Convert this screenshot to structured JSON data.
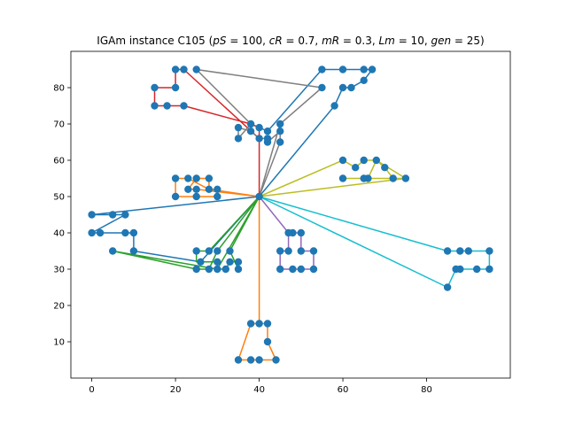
{
  "chart_data": {
    "type": "scatter",
    "title": "IGAm instance C105 (pS = 100, cR = 0.7, mR = 0.3, Lm = 10, gen = 25)",
    "title_parts": [
      {
        "text": "IGAm instance C105 (",
        "italic": false
      },
      {
        "text": "pS",
        "italic": true
      },
      {
        "text": " = 100, ",
        "italic": false
      },
      {
        "text": "cR",
        "italic": true
      },
      {
        "text": " = 0.7, ",
        "italic": false
      },
      {
        "text": "mR",
        "italic": true
      },
      {
        "text": " = 0.3, ",
        "italic": false
      },
      {
        "text": "Lm",
        "italic": true
      },
      {
        "text": " = 10, ",
        "italic": false
      },
      {
        "text": "gen",
        "italic": true
      },
      {
        "text": " = 25)",
        "italic": false
      }
    ],
    "xlabel": "",
    "ylabel": "",
    "xlim": [
      -5,
      100
    ],
    "ylim": [
      0,
      90
    ],
    "xticks": [
      0,
      20,
      40,
      60,
      80
    ],
    "yticks": [
      10,
      20,
      30,
      40,
      50,
      60,
      70,
      80
    ],
    "grid": false,
    "depot": [
      40,
      50
    ],
    "marker_color": "#1f77b4",
    "customers": [
      [
        45,
        68
      ],
      [
        45,
        70
      ],
      [
        42,
        66
      ],
      [
        42,
        68
      ],
      [
        42,
        65
      ],
      [
        40,
        69
      ],
      [
        40,
        66
      ],
      [
        38,
        68
      ],
      [
        38,
        70
      ],
      [
        35,
        66
      ],
      [
        35,
        69
      ],
      [
        25,
        85
      ],
      [
        22,
        75
      ],
      [
        22,
        85
      ],
      [
        20,
        80
      ],
      [
        20,
        85
      ],
      [
        18,
        75
      ],
      [
        15,
        75
      ],
      [
        15,
        80
      ],
      [
        30,
        50
      ],
      [
        30,
        52
      ],
      [
        28,
        52
      ],
      [
        28,
        55
      ],
      [
        25,
        50
      ],
      [
        25,
        52
      ],
      [
        25,
        55
      ],
      [
        23,
        52
      ],
      [
        23,
        55
      ],
      [
        20,
        50
      ],
      [
        20,
        55
      ],
      [
        10,
        35
      ],
      [
        10,
        40
      ],
      [
        8,
        40
      ],
      [
        8,
        45
      ],
      [
        5,
        35
      ],
      [
        5,
        45
      ],
      [
        2,
        40
      ],
      [
        0,
        40
      ],
      [
        0,
        45
      ],
      [
        35,
        30
      ],
      [
        35,
        32
      ],
      [
        33,
        32
      ],
      [
        33,
        35
      ],
      [
        32,
        30
      ],
      [
        30,
        30
      ],
      [
        30,
        32
      ],
      [
        30,
        35
      ],
      [
        28,
        30
      ],
      [
        28,
        35
      ],
      [
        26,
        32
      ],
      [
        25,
        30
      ],
      [
        25,
        35
      ],
      [
        44,
        5
      ],
      [
        42,
        10
      ],
      [
        42,
        15
      ],
      [
        40,
        5
      ],
      [
        40,
        15
      ],
      [
        38,
        5
      ],
      [
        38,
        15
      ],
      [
        35,
        5
      ],
      [
        95,
        30
      ],
      [
        95,
        35
      ],
      [
        53,
        30
      ],
      [
        92,
        30
      ],
      [
        53,
        35
      ],
      [
        45,
        65
      ],
      [
        90,
        35
      ],
      [
        88,
        30
      ],
      [
        88,
        35
      ],
      [
        87,
        30
      ],
      [
        85,
        25
      ],
      [
        85,
        35
      ],
      [
        75,
        55
      ],
      [
        72,
        55
      ],
      [
        70,
        58
      ],
      [
        68,
        60
      ],
      [
        66,
        55
      ],
      [
        65,
        55
      ],
      [
        65,
        60
      ],
      [
        63,
        58
      ],
      [
        60,
        55
      ],
      [
        60,
        60
      ],
      [
        67,
        85
      ],
      [
        65,
        85
      ],
      [
        65,
        82
      ],
      [
        62,
        80
      ],
      [
        60,
        80
      ],
      [
        60,
        85
      ],
      [
        58,
        75
      ],
      [
        55,
        80
      ],
      [
        55,
        85
      ],
      [
        50,
        30
      ],
      [
        50,
        35
      ],
      [
        50,
        40
      ],
      [
        48,
        30
      ],
      [
        48,
        40
      ],
      [
        47,
        35
      ],
      [
        47,
        40
      ],
      [
        45,
        30
      ],
      [
        45,
        35
      ]
    ],
    "series": [
      {
        "color": "#1f77b4",
        "points": [
          [
            40,
            50
          ],
          [
            58,
            75
          ],
          [
            60,
            80
          ],
          [
            62,
            80
          ],
          [
            65,
            82
          ],
          [
            67,
            85
          ],
          [
            65,
            85
          ],
          [
            60,
            85
          ],
          [
            55,
            85
          ],
          [
            42,
            68
          ],
          [
            40,
            69
          ]
        ]
      },
      {
        "color": "#1f77b4",
        "points": [
          [
            40,
            50
          ],
          [
            0,
            45
          ],
          [
            5,
            45
          ],
          [
            8,
            45
          ],
          [
            0,
            40
          ],
          [
            2,
            40
          ],
          [
            8,
            40
          ],
          [
            10,
            40
          ],
          [
            10,
            35
          ],
          [
            26,
            32
          ],
          [
            40,
            50
          ]
        ]
      },
      {
        "color": "#ff7f0e",
        "points": [
          [
            40,
            50
          ],
          [
            25,
            52
          ],
          [
            23,
            52
          ],
          [
            25,
            55
          ],
          [
            28,
            55
          ],
          [
            28,
            52
          ],
          [
            30,
            52
          ],
          [
            30,
            50
          ],
          [
            25,
            50
          ],
          [
            20,
            50
          ],
          [
            20,
            55
          ],
          [
            23,
            55
          ],
          [
            28,
            52
          ],
          [
            40,
            50
          ]
        ]
      },
      {
        "color": "#ff7f0e",
        "points": [
          [
            40,
            50
          ],
          [
            40,
            15
          ],
          [
            38,
            15
          ],
          [
            35,
            5
          ],
          [
            38,
            5
          ],
          [
            40,
            5
          ],
          [
            44,
            5
          ],
          [
            42,
            10
          ],
          [
            42,
            15
          ],
          [
            40,
            15
          ],
          [
            40,
            50
          ]
        ]
      },
      {
        "color": "#2ca02c",
        "points": [
          [
            40,
            50
          ],
          [
            28,
            35
          ],
          [
            25,
            35
          ],
          [
            25,
            32
          ],
          [
            30,
            32
          ],
          [
            30,
            30
          ],
          [
            32,
            30
          ],
          [
            33,
            32
          ],
          [
            35,
            32
          ],
          [
            35,
            30
          ],
          [
            33,
            35
          ],
          [
            40,
            50
          ]
        ]
      },
      {
        "color": "#2ca02c",
        "points": [
          [
            40,
            50
          ],
          [
            30,
            35
          ],
          [
            28,
            30
          ],
          [
            25,
            30
          ],
          [
            5,
            35
          ],
          [
            30,
            30
          ],
          [
            40,
            50
          ]
        ]
      },
      {
        "color": "#d62728",
        "points": [
          [
            40,
            50
          ],
          [
            40,
            69
          ],
          [
            38,
            70
          ],
          [
            22,
            75
          ],
          [
            18,
            75
          ],
          [
            15,
            75
          ],
          [
            15,
            80
          ],
          [
            20,
            80
          ],
          [
            20,
            85
          ],
          [
            22,
            85
          ],
          [
            40,
            66
          ]
        ]
      },
      {
        "color": "#9467bd",
        "points": [
          [
            40,
            50
          ],
          [
            47,
            40
          ],
          [
            48,
            40
          ],
          [
            50,
            40
          ],
          [
            50,
            35
          ],
          [
            53,
            35
          ],
          [
            53,
            30
          ],
          [
            50,
            30
          ],
          [
            48,
            30
          ],
          [
            45,
            30
          ],
          [
            45,
            35
          ],
          [
            47,
            35
          ],
          [
            47,
            40
          ],
          [
            40,
            50
          ]
        ]
      },
      {
        "color": "#7f7f7f",
        "points": [
          [
            40,
            50
          ],
          [
            45,
            65
          ],
          [
            45,
            68
          ],
          [
            42,
            65
          ],
          [
            42,
            66
          ],
          [
            40,
            66
          ],
          [
            38,
            68
          ],
          [
            35,
            69
          ],
          [
            35,
            66
          ],
          [
            38,
            70
          ],
          [
            25,
            85
          ],
          [
            55,
            80
          ],
          [
            45,
            70
          ],
          [
            40,
            50
          ]
        ]
      },
      {
        "color": "#bcbd22",
        "points": [
          [
            40,
            50
          ],
          [
            60,
            60
          ],
          [
            63,
            58
          ],
          [
            65,
            60
          ],
          [
            68,
            60
          ],
          [
            70,
            58
          ],
          [
            72,
            55
          ],
          [
            75,
            55
          ],
          [
            68,
            60
          ],
          [
            66,
            55
          ],
          [
            65,
            55
          ],
          [
            60,
            55
          ],
          [
            75,
            55
          ],
          [
            40,
            50
          ]
        ]
      },
      {
        "color": "#17becf",
        "points": [
          [
            40,
            50
          ],
          [
            85,
            25
          ],
          [
            87,
            30
          ],
          [
            88,
            30
          ],
          [
            92,
            30
          ],
          [
            95,
            30
          ],
          [
            95,
            35
          ],
          [
            90,
            35
          ],
          [
            88,
            35
          ],
          [
            85,
            35
          ],
          [
            40,
            50
          ]
        ]
      }
    ]
  }
}
